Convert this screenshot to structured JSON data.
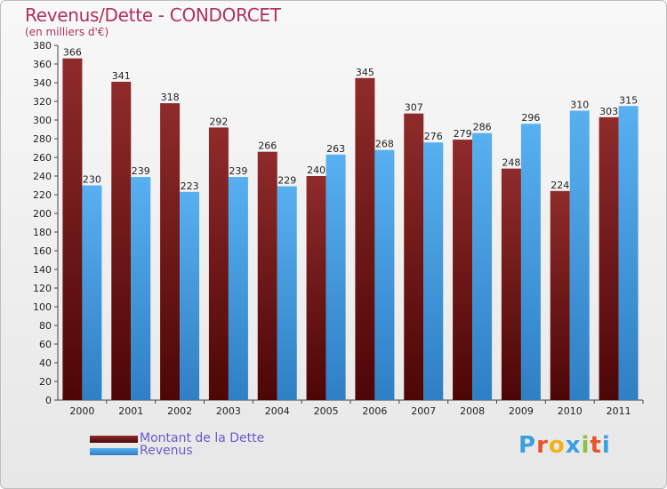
{
  "title": "Revenus/Dette - CONDORCET",
  "subtitle": "(en milliers d'€)",
  "logo": {
    "text": "Proxiti",
    "colors": [
      "#3aa0e0",
      "#e8542a",
      "#f2b21b",
      "#3aa0e0",
      "#8ac43f",
      "#e8542a",
      "#3aa0e0"
    ]
  },
  "chart_data": {
    "type": "bar",
    "categories": [
      "2000",
      "2001",
      "2002",
      "2003",
      "2004",
      "2005",
      "2006",
      "2007",
      "2008",
      "2009",
      "2010",
      "2011"
    ],
    "series": [
      {
        "name": "Montant de la Dette",
        "color": "#7a1e1e",
        "values": [
          366,
          341,
          318,
          292,
          266,
          240,
          345,
          307,
          279,
          248,
          224,
          303
        ]
      },
      {
        "name": "Revenus",
        "color": "#4ea3e6",
        "values": [
          230,
          239,
          223,
          239,
          229,
          263,
          268,
          276,
          286,
          296,
          310,
          315
        ]
      }
    ],
    "ylim": [
      0,
      380
    ],
    "ytick_step": 20,
    "grid": false,
    "legend_position": "bottom-left"
  }
}
